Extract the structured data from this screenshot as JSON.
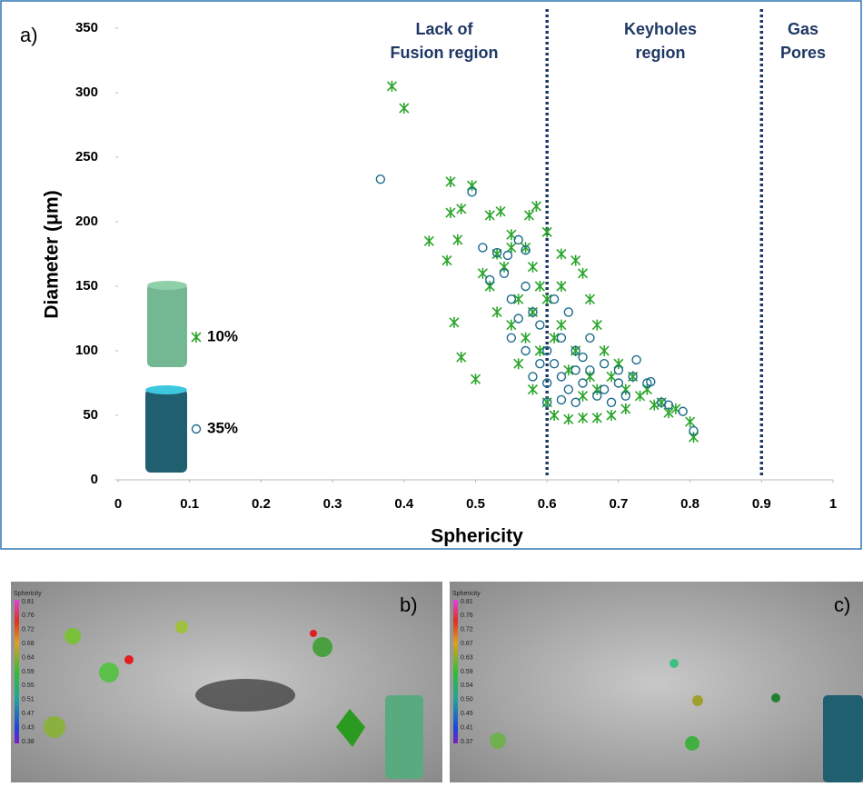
{
  "chart_data": {
    "type": "scatter",
    "panel_label": "a)",
    "xlabel": "Sphericity",
    "ylabel": "Diameter (μm)",
    "xlim": [
      0,
      1
    ],
    "ylim": [
      0,
      350
    ],
    "xticks": [
      0,
      0.1,
      0.2,
      0.3,
      0.4,
      0.5,
      0.6,
      0.7,
      0.8,
      0.9,
      1
    ],
    "yticks": [
      0,
      50,
      100,
      150,
      200,
      250,
      300,
      350
    ],
    "region_boundaries": [
      0.6,
      0.9
    ],
    "regions": [
      "Lack of Fusion region",
      "Keyholes region",
      "Gas Pores"
    ],
    "series": [
      {
        "name": "10%",
        "marker": "x",
        "color": "#2aa52a",
        "x": [
          0.383,
          0.4,
          0.465,
          0.495,
          0.435,
          0.465,
          0.48,
          0.475,
          0.46,
          0.47,
          0.48,
          0.5,
          0.52,
          0.535,
          0.55,
          0.575,
          0.585,
          0.6,
          0.52,
          0.54,
          0.55,
          0.56,
          0.58,
          0.59,
          0.6,
          0.62,
          0.64,
          0.65,
          0.66,
          0.67,
          0.68,
          0.7,
          0.72,
          0.74,
          0.76,
          0.78,
          0.8,
          0.805,
          0.61,
          0.63,
          0.65,
          0.67,
          0.69,
          0.71,
          0.62,
          0.64,
          0.66,
          0.6,
          0.62,
          0.58,
          0.57,
          0.53,
          0.55,
          0.51,
          0.53,
          0.56,
          0.58,
          0.57,
          0.59,
          0.61,
          0.63,
          0.65,
          0.67,
          0.69,
          0.71,
          0.73,
          0.75,
          0.77
        ],
        "values": [
          305,
          288,
          231,
          228,
          185,
          207,
          210,
          186,
          170,
          122,
          95,
          78,
          205,
          208,
          190,
          205,
          212,
          192,
          150,
          165,
          120,
          140,
          130,
          100,
          60,
          175,
          170,
          160,
          140,
          120,
          100,
          90,
          80,
          70,
          60,
          55,
          45,
          33,
          50,
          47,
          48,
          48,
          50,
          55,
          120,
          100,
          80,
          140,
          150,
          165,
          180,
          175,
          180,
          160,
          130,
          90,
          70,
          110,
          150,
          110,
          85,
          65,
          70,
          80,
          70,
          65,
          58,
          52
        ]
      },
      {
        "name": "35%",
        "marker": "circle",
        "color": "#1a6a8c",
        "x": [
          0.367,
          0.495,
          0.51,
          0.53,
          0.545,
          0.56,
          0.57,
          0.52,
          0.54,
          0.55,
          0.57,
          0.58,
          0.59,
          0.6,
          0.61,
          0.62,
          0.63,
          0.64,
          0.65,
          0.66,
          0.67,
          0.68,
          0.69,
          0.7,
          0.71,
          0.72,
          0.725,
          0.74,
          0.745,
          0.76,
          0.77,
          0.79,
          0.805,
          0.6,
          0.62,
          0.64,
          0.66,
          0.63,
          0.61,
          0.59,
          0.57,
          0.58,
          0.55,
          0.56,
          0.62,
          0.65,
          0.68,
          0.7,
          0.6,
          0.64
        ],
        "values": [
          233,
          223,
          180,
          176,
          174,
          186,
          178,
          155,
          160,
          140,
          150,
          130,
          120,
          100,
          90,
          80,
          70,
          60,
          75,
          85,
          65,
          70,
          60,
          75,
          65,
          80,
          93,
          75,
          76,
          60,
          58,
          53,
          38,
          60,
          62,
          100,
          110,
          130,
          140,
          90,
          100,
          80,
          110,
          125,
          110,
          95,
          90,
          85,
          75,
          85
        ]
      }
    ]
  },
  "panels": [
    {
      "label": "b)",
      "colorbar_title": "Sphericity",
      "colorbar_ticks": [
        "0.81",
        "0.76",
        "0.72",
        "0.68",
        "0.64",
        "0.59",
        "0.55",
        "0.51",
        "0.47",
        "0.43",
        "0.38"
      ]
    },
    {
      "label": "c)",
      "colorbar_title": "Sphericity",
      "colorbar_ticks": [
        "0.81",
        "0.76",
        "0.72",
        "0.67",
        "0.63",
        "0.59",
        "0.54",
        "0.50",
        "0.45",
        "0.41",
        "0.37"
      ]
    }
  ]
}
